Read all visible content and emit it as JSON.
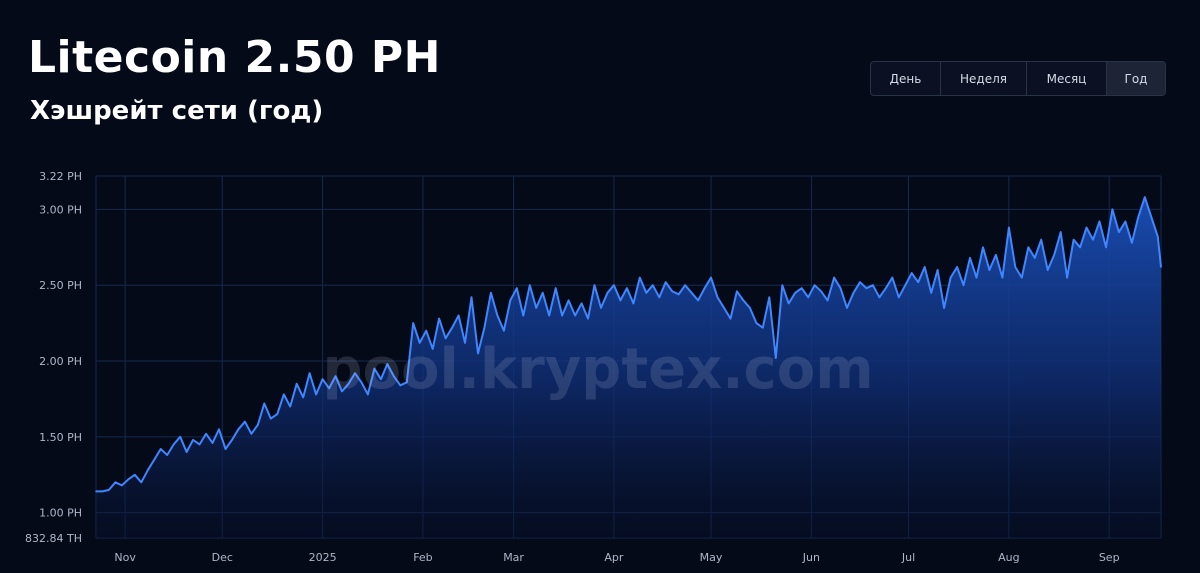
{
  "header": {
    "title": "Litecoin 2.50 PH",
    "subtitle": "Хэшрейт сети (год)"
  },
  "range_switch": {
    "options": [
      "День",
      "Неделя",
      "Месяц",
      "Год"
    ],
    "selected": "Год"
  },
  "watermark": "pool.kryptex.com",
  "colors": {
    "background": "#050a19",
    "line": "#3f86ff",
    "fill_top": "#1a4fb8",
    "grid": "#16294d"
  },
  "chart_data": {
    "type": "area",
    "title": "Хэшрейт сети (год)",
    "xlabel": "",
    "ylabel": "",
    "unit": "PH",
    "ylim": [
      0.833,
      3.22
    ],
    "y_ticks": [
      {
        "value": 3.22,
        "label": "3.22 PH"
      },
      {
        "value": 3.0,
        "label": "3.00 PH"
      },
      {
        "value": 2.5,
        "label": "2.50 PH"
      },
      {
        "value": 2.0,
        "label": "2.00 PH"
      },
      {
        "value": 1.5,
        "label": "1.50 PH"
      },
      {
        "value": 1.0,
        "label": "1.00 PH"
      },
      {
        "value": 0.83284,
        "label": "832.84 TH"
      }
    ],
    "x_ticks": [
      "Nov",
      "Dec",
      "2025",
      "Feb",
      "Mar",
      "Apr",
      "May",
      "Jun",
      "Jul",
      "Aug",
      "Sep"
    ],
    "grid": true,
    "legend": "none",
    "x_start": "Oct 23",
    "x_end": "Sep 17",
    "x_tick_dates": [
      "Nov 1",
      "Dec 1",
      "Jan 1",
      "Feb 1",
      "Mar 1",
      "Apr 1",
      "May 1",
      "Jun 1",
      "Jul 1",
      "Aug 1",
      "Sep 1"
    ],
    "x": [
      "Oct 23",
      "Oct 25",
      "Oct 27",
      "Oct 29",
      "Oct 31",
      "Nov 2",
      "Nov 4",
      "Nov 6",
      "Nov 8",
      "Nov 10",
      "Nov 12",
      "Nov 14",
      "Nov 16",
      "Nov 18",
      "Nov 20",
      "Nov 22",
      "Nov 24",
      "Nov 26",
      "Nov 28",
      "Nov 30",
      "Dec 2",
      "Dec 4",
      "Dec 6",
      "Dec 8",
      "Dec 10",
      "Dec 12",
      "Dec 14",
      "Dec 16",
      "Dec 18",
      "Dec 20",
      "Dec 22",
      "Dec 24",
      "Dec 26",
      "Dec 28",
      "Dec 30",
      "Jan 1",
      "Jan 3",
      "Jan 5",
      "Jan 7",
      "Jan 9",
      "Jan 11",
      "Jan 13",
      "Jan 15",
      "Jan 17",
      "Jan 19",
      "Jan 21",
      "Jan 23",
      "Jan 25",
      "Jan 27",
      "Jan 29",
      "Jan 31",
      "Feb 2",
      "Feb 4",
      "Feb 6",
      "Feb 8",
      "Feb 10",
      "Feb 12",
      "Feb 14",
      "Feb 16",
      "Feb 18",
      "Feb 20",
      "Feb 22",
      "Feb 24",
      "Feb 26",
      "Feb 28",
      "Mar 2",
      "Mar 4",
      "Mar 6",
      "Mar 8",
      "Mar 10",
      "Mar 12",
      "Mar 14",
      "Mar 16",
      "Mar 18",
      "Mar 20",
      "Mar 22",
      "Mar 24",
      "Mar 26",
      "Mar 28",
      "Mar 30",
      "Apr 1",
      "Apr 3",
      "Apr 5",
      "Apr 7",
      "Apr 9",
      "Apr 11",
      "Apr 13",
      "Apr 15",
      "Apr 17",
      "Apr 19",
      "Apr 21",
      "Apr 23",
      "Apr 25",
      "Apr 27",
      "Apr 29",
      "May 1",
      "May 3",
      "May 5",
      "May 7",
      "May 9",
      "May 11",
      "May 13",
      "May 15",
      "May 17",
      "May 19",
      "May 21",
      "May 23",
      "May 25",
      "May 27",
      "May 29",
      "May 31",
      "Jun 2",
      "Jun 4",
      "Jun 6",
      "Jun 8",
      "Jun 10",
      "Jun 12",
      "Jun 14",
      "Jun 16",
      "Jun 18",
      "Jun 20",
      "Jun 22",
      "Jun 24",
      "Jun 26",
      "Jun 28",
      "Jun 30",
      "Jul 2",
      "Jul 4",
      "Jul 6",
      "Jul 8",
      "Jul 10",
      "Jul 12",
      "Jul 14",
      "Jul 16",
      "Jul 18",
      "Jul 20",
      "Jul 22",
      "Jul 24",
      "Jul 26",
      "Jul 28",
      "Jul 30",
      "Aug 1",
      "Aug 3",
      "Aug 5",
      "Aug 7",
      "Aug 9",
      "Aug 11",
      "Aug 13",
      "Aug 15",
      "Aug 17",
      "Aug 19",
      "Aug 21",
      "Aug 23",
      "Aug 25",
      "Aug 27",
      "Aug 29",
      "Aug 31",
      "Sep 2",
      "Sep 4",
      "Sep 6",
      "Sep 8",
      "Sep 10",
      "Sep 12",
      "Sep 14",
      "Sep 16",
      "Sep 17"
    ],
    "series": [
      {
        "values": [
          1.14,
          1.14,
          1.15,
          1.2,
          1.18,
          1.22,
          1.25,
          1.2,
          1.28,
          1.35,
          1.42,
          1.38,
          1.45,
          1.5,
          1.4,
          1.48,
          1.45,
          1.52,
          1.46,
          1.55,
          1.42,
          1.48,
          1.55,
          1.6,
          1.52,
          1.58,
          1.72,
          1.62,
          1.65,
          1.78,
          1.7,
          1.85,
          1.76,
          1.92,
          1.78,
          1.88,
          1.82,
          1.9,
          1.8,
          1.85,
          1.92,
          1.86,
          1.78,
          1.95,
          1.88,
          1.98,
          1.9,
          1.84,
          1.86,
          2.25,
          2.12,
          2.2,
          2.08,
          2.28,
          2.15,
          2.22,
          2.3,
          2.12,
          2.42,
          2.05,
          2.22,
          2.45,
          2.3,
          2.2,
          2.4,
          2.48,
          2.3,
          2.5,
          2.35,
          2.45,
          2.3,
          2.48,
          2.3,
          2.4,
          2.3,
          2.38,
          2.28,
          2.5,
          2.35,
          2.45,
          2.5,
          2.4,
          2.48,
          2.38,
          2.55,
          2.45,
          2.5,
          2.42,
          2.52,
          2.46,
          2.44,
          2.5,
          2.45,
          2.4,
          2.48,
          2.55,
          2.42,
          2.35,
          2.28,
          2.46,
          2.4,
          2.35,
          2.25,
          2.22,
          2.42,
          2.02,
          2.5,
          2.38,
          2.45,
          2.48,
          2.42,
          2.5,
          2.46,
          2.4,
          2.55,
          2.48,
          2.35,
          2.45,
          2.52,
          2.48,
          2.5,
          2.42,
          2.48,
          2.55,
          2.42,
          2.5,
          2.58,
          2.52,
          2.62,
          2.45,
          2.6,
          2.35,
          2.55,
          2.62,
          2.5,
          2.68,
          2.55,
          2.75,
          2.6,
          2.7,
          2.55,
          2.88,
          2.62,
          2.55,
          2.75,
          2.68,
          2.8,
          2.6,
          2.7,
          2.85,
          2.55,
          2.8,
          2.75,
          2.88,
          2.8,
          2.92,
          2.75,
          3.0,
          2.85,
          2.92,
          2.78,
          2.95,
          3.08,
          2.95,
          2.82,
          2.62
        ]
      }
    ]
  }
}
